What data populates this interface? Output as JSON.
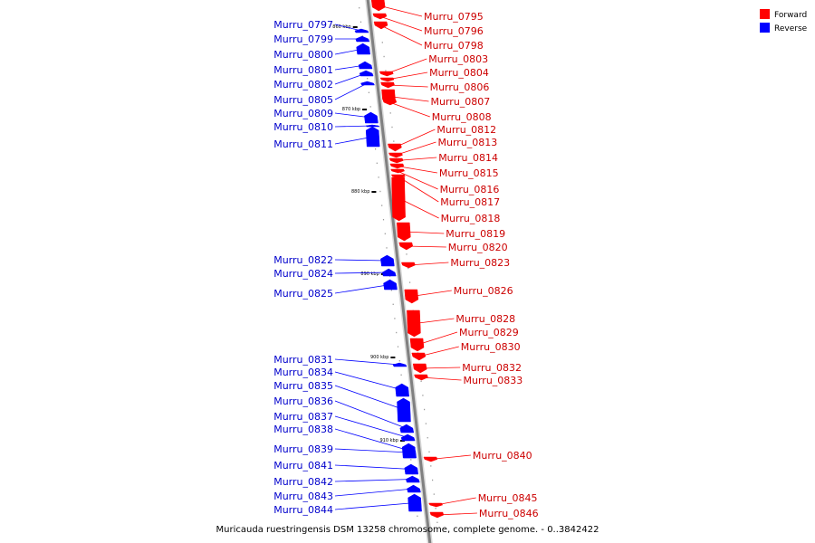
{
  "legend": [
    {
      "name": "Forward",
      "color": "#ff0000"
    },
    {
      "name": "Reverse",
      "color": "#0000ff"
    }
  ],
  "caption": "Muricauda ruestringensis DSM 13258 chromosome, complete genome. - 0..3842422",
  "scale_labels": [
    "860 kbp",
    "870 kbp",
    "880 kbp",
    "890 kbp",
    "900 kbp",
    "910 kbp"
  ],
  "genes": [
    {
      "id": "Murru_0795",
      "strand": "forward"
    },
    {
      "id": "Murru_0796",
      "strand": "forward"
    },
    {
      "id": "Murru_0797",
      "strand": "reverse"
    },
    {
      "id": "Murru_0798",
      "strand": "forward"
    },
    {
      "id": "Murru_0799",
      "strand": "reverse"
    },
    {
      "id": "Murru_0800",
      "strand": "reverse"
    },
    {
      "id": "Murru_0801",
      "strand": "reverse"
    },
    {
      "id": "Murru_0802",
      "strand": "reverse"
    },
    {
      "id": "Murru_0803",
      "strand": "forward"
    },
    {
      "id": "Murru_0804",
      "strand": "forward"
    },
    {
      "id": "Murru_0805",
      "strand": "reverse"
    },
    {
      "id": "Murru_0806",
      "strand": "forward"
    },
    {
      "id": "Murru_0807",
      "strand": "forward"
    },
    {
      "id": "Murru_0808",
      "strand": "forward"
    },
    {
      "id": "Murru_0809",
      "strand": "reverse"
    },
    {
      "id": "Murru_0810",
      "strand": "reverse"
    },
    {
      "id": "Murru_0811",
      "strand": "reverse"
    },
    {
      "id": "Murru_0812",
      "strand": "forward"
    },
    {
      "id": "Murru_0813",
      "strand": "forward"
    },
    {
      "id": "Murru_0814",
      "strand": "forward"
    },
    {
      "id": "Murru_0815",
      "strand": "forward"
    },
    {
      "id": "Murru_0816",
      "strand": "forward"
    },
    {
      "id": "Murru_0817",
      "strand": "forward"
    },
    {
      "id": "Murru_0818",
      "strand": "forward"
    },
    {
      "id": "Murru_0819",
      "strand": "forward"
    },
    {
      "id": "Murru_0820",
      "strand": "forward"
    },
    {
      "id": "Murru_0822",
      "strand": "reverse"
    },
    {
      "id": "Murru_0823",
      "strand": "forward"
    },
    {
      "id": "Murru_0824",
      "strand": "reverse"
    },
    {
      "id": "Murru_0825",
      "strand": "reverse"
    },
    {
      "id": "Murru_0826",
      "strand": "forward"
    },
    {
      "id": "Murru_0828",
      "strand": "forward"
    },
    {
      "id": "Murru_0829",
      "strand": "forward"
    },
    {
      "id": "Murru_0830",
      "strand": "forward"
    },
    {
      "id": "Murru_0831",
      "strand": "reverse"
    },
    {
      "id": "Murru_0832",
      "strand": "forward"
    },
    {
      "id": "Murru_0833",
      "strand": "forward"
    },
    {
      "id": "Murru_0834",
      "strand": "reverse"
    },
    {
      "id": "Murru_0835",
      "strand": "reverse"
    },
    {
      "id": "Murru_0836",
      "strand": "reverse"
    },
    {
      "id": "Murru_0837",
      "strand": "reverse"
    },
    {
      "id": "Murru_0838",
      "strand": "reverse"
    },
    {
      "id": "Murru_0839",
      "strand": "reverse"
    },
    {
      "id": "Murru_0840",
      "strand": "forward"
    },
    {
      "id": "Murru_0841",
      "strand": "reverse"
    },
    {
      "id": "Murru_0842",
      "strand": "reverse"
    },
    {
      "id": "Murru_0843",
      "strand": "reverse"
    },
    {
      "id": "Murru_0844",
      "strand": "reverse"
    },
    {
      "id": "Murru_0845",
      "strand": "forward"
    },
    {
      "id": "Murru_0846",
      "strand": "forward"
    }
  ]
}
